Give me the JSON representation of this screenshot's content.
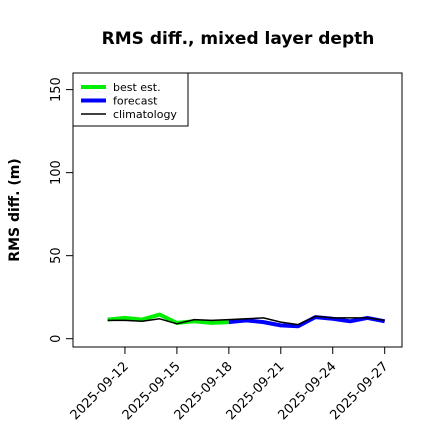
{
  "chart_data": {
    "type": "line",
    "title": "RMS diff., mixed layer depth",
    "ylabel": "RMS diff. (m)",
    "xlabel": "",
    "ylim": [
      -5,
      160
    ],
    "yticks": [
      0,
      50,
      100,
      150
    ],
    "xlim": [
      "2025-09-09",
      "2025-09-28"
    ],
    "xticks": [
      {
        "label": "2025-09-12",
        "highlight": false
      },
      {
        "label": "2025-09-15",
        "highlight": false
      },
      {
        "label": "2025-09-18",
        "highlight": true
      },
      {
        "label": "2025-09-21",
        "highlight": false
      },
      {
        "label": "2025-09-24",
        "highlight": false
      },
      {
        "label": "2025-09-27",
        "highlight": false
      }
    ],
    "x": [
      "2025-09-11",
      "2025-09-12",
      "2025-09-13",
      "2025-09-14",
      "2025-09-15",
      "2025-09-16",
      "2025-09-17",
      "2025-09-18",
      "2025-09-19",
      "2025-09-20",
      "2025-09-21",
      "2025-09-22",
      "2025-09-23",
      "2025-09-24",
      "2025-09-25",
      "2025-09-26",
      "2025-09-27"
    ],
    "series": [
      {
        "name": "best est.",
        "color": "#00ee00",
        "width": 4,
        "values": [
          11.5,
          12.5,
          11.5,
          14.5,
          9.5,
          10.5,
          9.5,
          10,
          null,
          null,
          null,
          null,
          null,
          null,
          null,
          null,
          null
        ]
      },
      {
        "name": "forecast",
        "color": "#0000ff",
        "width": 4,
        "values": [
          null,
          null,
          null,
          null,
          null,
          null,
          null,
          10,
          11,
          10,
          8,
          7.5,
          13,
          12,
          10.5,
          12.5,
          10.5
        ]
      },
      {
        "name": "climatology",
        "color": "#000000",
        "width": 1.5,
        "values": [
          11,
          11,
          10.5,
          12,
          9,
          11.5,
          11,
          11.5,
          12,
          12.5,
          10,
          8.5,
          13.5,
          12.5,
          12.5,
          12.5,
          11
        ]
      }
    ],
    "legend_position": "top-left",
    "grid": false,
    "highlight_color": "#228b22"
  }
}
